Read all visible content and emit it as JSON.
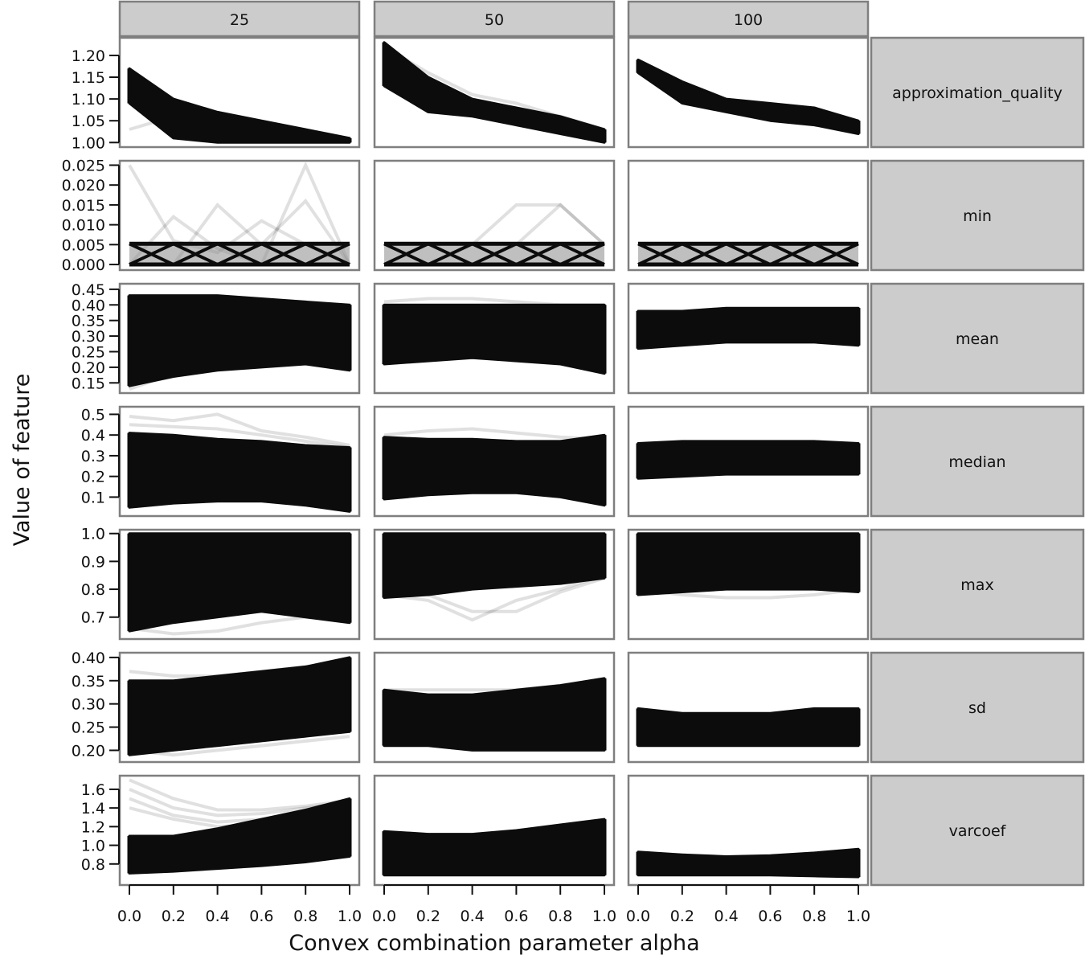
{
  "chart_data": {
    "type": "line",
    "xlabel": "Convex combination parameter alpha",
    "ylabel": "Value of feature",
    "column_panels": [
      "25",
      "50",
      "100"
    ],
    "row_panels": [
      "approximation_quality",
      "min",
      "mean",
      "median",
      "max",
      "sd",
      "varcoef"
    ],
    "x": [
      0.0,
      0.2,
      0.4,
      0.6,
      0.8,
      1.0
    ],
    "x_ticks": [
      "0.0",
      "0.2",
      "0.4",
      "0.6",
      "0.8",
      "1.0"
    ],
    "xlim": [
      0.0,
      1.0
    ],
    "line_color": "#0c0c0c",
    "rows": [
      {
        "name": "approximation_quality",
        "ylim": [
          0.995,
          1.235
        ],
        "y_ticks": [
          "1.00",
          "1.05",
          "1.10",
          "1.15",
          "1.20"
        ],
        "y_tick_values": [
          1.0,
          1.05,
          1.1,
          1.15,
          1.2
        ],
        "bands": [
          {
            "upper": [
              1.17,
              1.1,
              1.07,
              1.05,
              1.03,
              1.01
            ],
            "lower": [
              1.09,
              1.01,
              1.0,
              1.0,
              1.0,
              1.0
            ]
          },
          {
            "upper": [
              1.23,
              1.15,
              1.1,
              1.08,
              1.06,
              1.03
            ],
            "lower": [
              1.13,
              1.07,
              1.06,
              1.04,
              1.02,
              1.0
            ]
          },
          {
            "upper": [
              1.19,
              1.14,
              1.1,
              1.09,
              1.08,
              1.05
            ],
            "lower": [
              1.16,
              1.09,
              1.07,
              1.05,
              1.04,
              1.02
            ]
          }
        ],
        "faint_lines": [
          [
            [
              1.03,
              1.06,
              1.04,
              1.02,
              1.01,
              1.0
            ]
          ],
          [
            [
              1.22,
              1.16,
              1.11,
              1.09,
              1.06,
              1.03
            ]
          ],
          []
        ]
      },
      {
        "name": "min",
        "ylim": [
          -0.0008,
          0.0255
        ],
        "y_ticks": [
          "0.000",
          "0.005",
          "0.010",
          "0.015",
          "0.020",
          "0.025"
        ],
        "y_tick_values": [
          0.0,
          0.005,
          0.01,
          0.015,
          0.02,
          0.025
        ],
        "zigzag": true,
        "bands": [
          {
            "upper": [
              0.0052,
              0.0052,
              0.0052,
              0.0052,
              0.0052,
              0.0052
            ],
            "lower": [
              0.0,
              0.0,
              0.0,
              0.0,
              0.0,
              0.0
            ]
          },
          {
            "upper": [
              0.0052,
              0.0052,
              0.0052,
              0.0052,
              0.0052,
              0.0052
            ],
            "lower": [
              0.0,
              0.0,
              0.0,
              0.0,
              0.0,
              0.0
            ]
          },
          {
            "upper": [
              0.0052,
              0.0052,
              0.0052,
              0.0052,
              0.0052,
              0.0052
            ],
            "lower": [
              0.0,
              0.0,
              0.0,
              0.0,
              0.0,
              0.0
            ]
          }
        ],
        "faint_lines": [
          [
            [
              0.025,
              0.006,
              0.003,
              0.011,
              0.005,
              0.0
            ],
            [
              0.0,
              0.012,
              0.004,
              0.0,
              0.025,
              0.0
            ],
            [
              0.0,
              0.0,
              0.015,
              0.005,
              0.016,
              0.0
            ]
          ],
          [
            [
              0.0,
              0.0,
              0.005,
              0.015,
              0.015,
              0.005
            ],
            [
              0.0,
              0.0,
              0.0,
              0.005,
              0.015,
              0.005
            ]
          ],
          []
        ]
      },
      {
        "name": "mean",
        "ylim": [
          0.125,
          0.46
        ],
        "y_ticks": [
          "0.15",
          "0.20",
          "0.25",
          "0.30",
          "0.35",
          "0.40",
          "0.45"
        ],
        "y_tick_values": [
          0.15,
          0.2,
          0.25,
          0.3,
          0.35,
          0.4,
          0.45
        ],
        "bands": [
          {
            "upper": [
              0.43,
              0.43,
              0.43,
              0.42,
              0.41,
              0.4
            ],
            "lower": [
              0.14,
              0.17,
              0.19,
              0.2,
              0.21,
              0.19
            ]
          },
          {
            "upper": [
              0.4,
              0.4,
              0.4,
              0.4,
              0.4,
              0.4
            ],
            "lower": [
              0.21,
              0.22,
              0.23,
              0.22,
              0.21,
              0.18
            ]
          },
          {
            "upper": [
              0.38,
              0.38,
              0.39,
              0.39,
              0.39,
              0.39
            ],
            "lower": [
              0.26,
              0.27,
              0.28,
              0.28,
              0.28,
              0.27
            ]
          }
        ],
        "faint_lines": [
          [
            [
              0.13,
              0.18,
              0.21,
              0.22,
              0.22,
              0.21
            ]
          ],
          [
            [
              0.41,
              0.42,
              0.42,
              0.41,
              0.4,
              0.4
            ]
          ],
          []
        ]
      },
      {
        "name": "median",
        "ylim": [
          0.02,
          0.525
        ],
        "y_ticks": [
          "0.1",
          "0.2",
          "0.3",
          "0.4",
          "0.5"
        ],
        "y_tick_values": [
          0.1,
          0.2,
          0.3,
          0.4,
          0.5
        ],
        "bands": [
          {
            "upper": [
              0.41,
              0.4,
              0.38,
              0.37,
              0.35,
              0.34
            ],
            "lower": [
              0.05,
              0.07,
              0.08,
              0.08,
              0.06,
              0.03
            ]
          },
          {
            "upper": [
              0.39,
              0.38,
              0.38,
              0.37,
              0.37,
              0.4
            ],
            "lower": [
              0.09,
              0.11,
              0.12,
              0.12,
              0.1,
              0.06
            ]
          },
          {
            "upper": [
              0.36,
              0.37,
              0.37,
              0.37,
              0.37,
              0.36
            ],
            "lower": [
              0.19,
              0.2,
              0.21,
              0.21,
              0.21,
              0.21
            ]
          }
        ],
        "faint_lines": [
          [
            [
              0.49,
              0.47,
              0.5,
              0.42,
              0.39,
              0.35
            ],
            [
              0.45,
              0.44,
              0.43,
              0.4,
              0.37,
              0.34
            ]
          ],
          [
            [
              0.4,
              0.42,
              0.43,
              0.41,
              0.39,
              0.38
            ]
          ],
          []
        ]
      },
      {
        "name": "max",
        "ylim": [
          0.63,
          1.005
        ],
        "y_ticks": [
          "0.7",
          "0.8",
          "0.9",
          "1.0"
        ],
        "y_tick_values": [
          0.7,
          0.8,
          0.9,
          1.0
        ],
        "bands": [
          {
            "upper": [
              1.0,
              1.0,
              1.0,
              1.0,
              1.0,
              1.0
            ],
            "lower": [
              0.65,
              0.68,
              0.7,
              0.72,
              0.7,
              0.68
            ]
          },
          {
            "upper": [
              1.0,
              1.0,
              1.0,
              1.0,
              1.0,
              1.0
            ],
            "lower": [
              0.77,
              0.78,
              0.8,
              0.81,
              0.82,
              0.84
            ]
          },
          {
            "upper": [
              1.0,
              1.0,
              1.0,
              1.0,
              1.0,
              1.0
            ],
            "lower": [
              0.78,
              0.79,
              0.8,
              0.8,
              0.8,
              0.79
            ]
          }
        ],
        "faint_lines": [
          [
            [
              0.66,
              0.64,
              0.65,
              0.68,
              0.7,
              0.69
            ]
          ],
          [
            [
              0.78,
              0.76,
              0.69,
              0.76,
              0.8,
              0.85
            ],
            [
              0.8,
              0.78,
              0.72,
              0.72,
              0.79,
              0.84
            ]
          ],
          [
            [
              0.8,
              0.78,
              0.77,
              0.77,
              0.78,
              0.8
            ]
          ]
        ]
      },
      {
        "name": "sd",
        "ylim": [
          0.18,
          0.405
        ],
        "y_ticks": [
          "0.20",
          "0.25",
          "0.30",
          "0.35",
          "0.40"
        ],
        "y_tick_values": [
          0.2,
          0.25,
          0.3,
          0.35,
          0.4
        ],
        "bands": [
          {
            "upper": [
              0.35,
              0.35,
              0.36,
              0.37,
              0.38,
              0.4
            ],
            "lower": [
              0.19,
              0.2,
              0.21,
              0.22,
              0.23,
              0.24
            ]
          },
          {
            "upper": [
              0.33,
              0.32,
              0.32,
              0.33,
              0.34,
              0.355
            ],
            "lower": [
              0.21,
              0.21,
              0.2,
              0.2,
              0.2,
              0.2
            ]
          },
          {
            "upper": [
              0.29,
              0.28,
              0.28,
              0.28,
              0.29,
              0.29
            ],
            "lower": [
              0.21,
              0.21,
              0.21,
              0.21,
              0.21,
              0.21
            ]
          }
        ],
        "faint_lines": [
          [
            [
              0.37,
              0.36,
              0.36,
              0.37,
              0.38,
              0.39
            ],
            [
              0.2,
              0.19,
              0.2,
              0.21,
              0.22,
              0.23
            ]
          ],
          [
            [
              0.33,
              0.33,
              0.33,
              0.33,
              0.34,
              0.35
            ]
          ],
          []
        ]
      },
      {
        "name": "varcoef",
        "ylim": [
          0.6,
          1.72
        ],
        "y_ticks": [
          "0.8",
          "1.0",
          "1.2",
          "1.4",
          "1.6"
        ],
        "y_tick_values": [
          0.8,
          1.0,
          1.2,
          1.4,
          1.6
        ],
        "bands": [
          {
            "upper": [
              1.1,
              1.1,
              1.18,
              1.28,
              1.38,
              1.5
            ],
            "lower": [
              0.7,
              0.72,
              0.75,
              0.78,
              0.82,
              0.88
            ]
          },
          {
            "upper": [
              1.15,
              1.12,
              1.12,
              1.16,
              1.22,
              1.28
            ],
            "lower": [
              0.68,
              0.68,
              0.68,
              0.68,
              0.68,
              0.68
            ]
          },
          {
            "upper": [
              0.93,
              0.9,
              0.88,
              0.89,
              0.92,
              0.96
            ],
            "lower": [
              0.68,
              0.68,
              0.68,
              0.68,
              0.67,
              0.66
            ]
          }
        ],
        "faint_lines": [
          [
            [
              1.7,
              1.5,
              1.38,
              1.38,
              1.42,
              1.48
            ],
            [
              1.6,
              1.4,
              1.32,
              1.34,
              1.4,
              1.46
            ],
            [
              1.5,
              1.32,
              1.25,
              1.28,
              1.36,
              1.45
            ],
            [
              1.4,
              1.28,
              1.2,
              1.22,
              1.3,
              1.42
            ]
          ],
          [],
          []
        ]
      }
    ]
  }
}
